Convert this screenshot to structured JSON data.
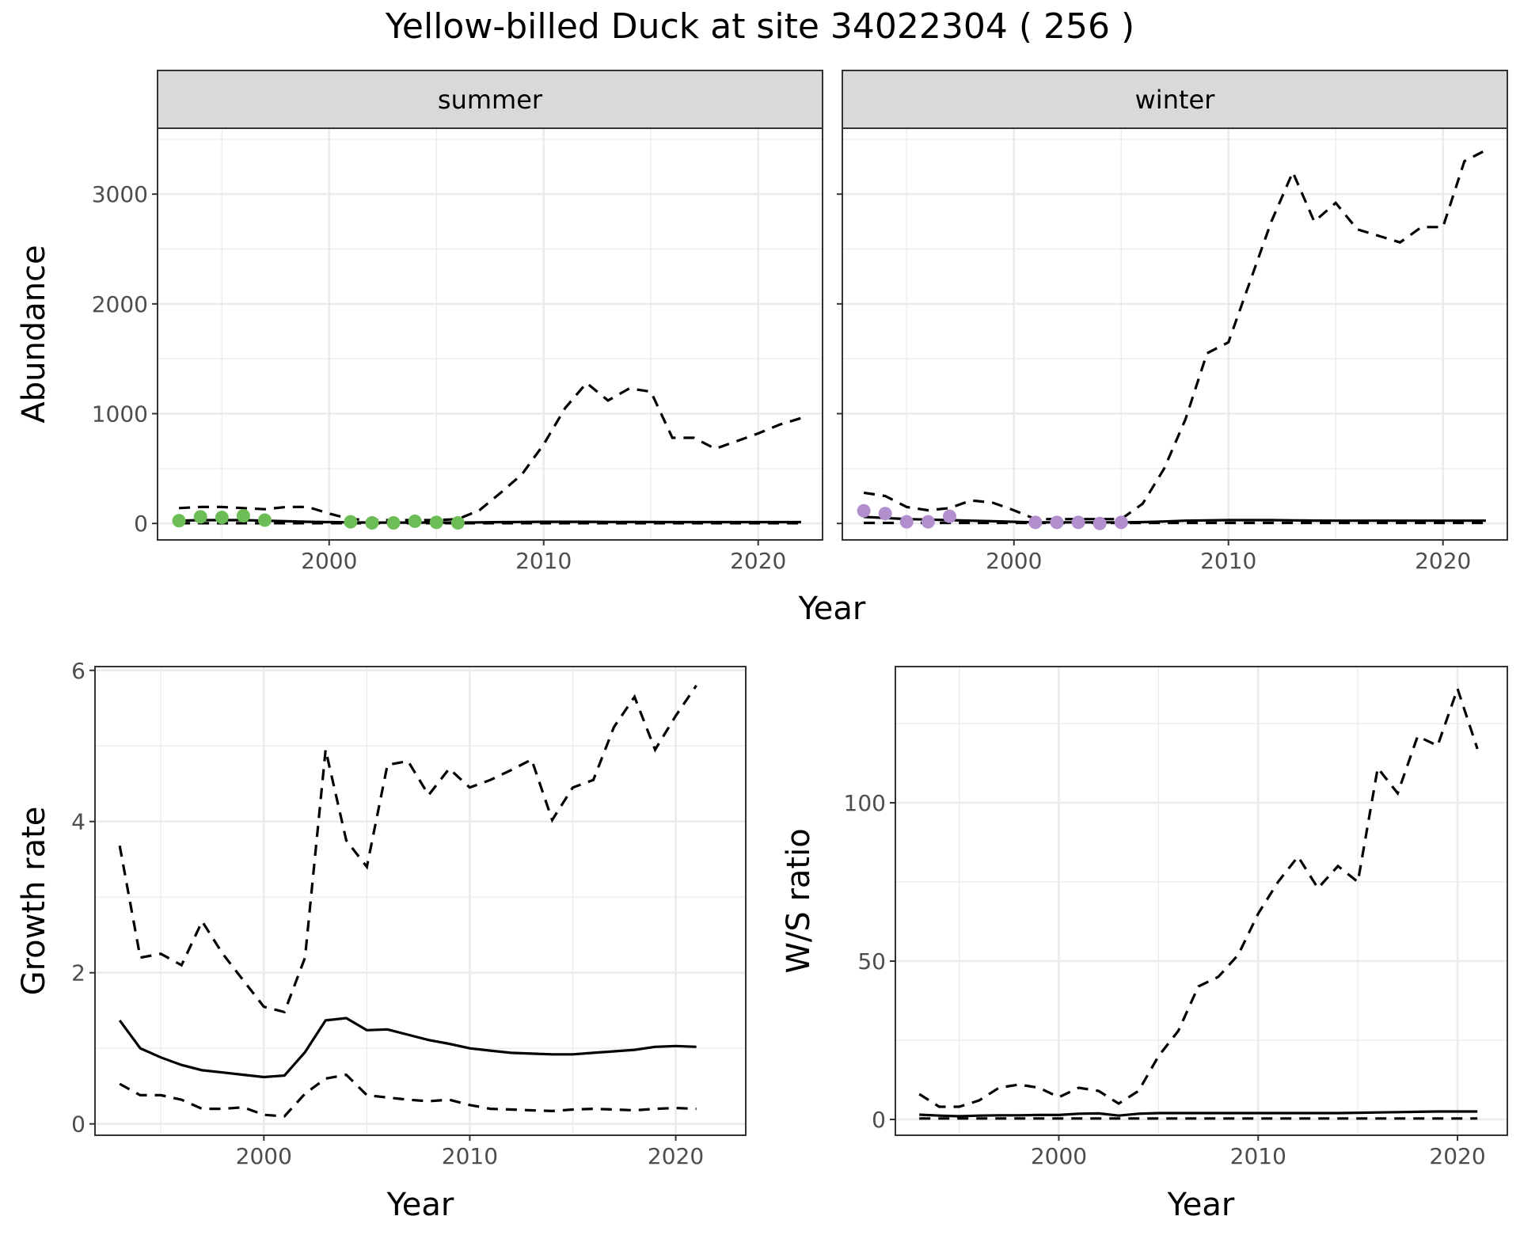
{
  "title": "Yellow-billed Duck at site 34022304 ( 256 )",
  "colors": {
    "summer_points": "#6dbd57",
    "winter_points": "#b18fcf",
    "lines": "#000000",
    "strip": "#d9d9d9",
    "grid": "#ebebeb"
  },
  "chart_data": [
    {
      "id": "abundance-summer",
      "type": "line",
      "strip_label": "summer",
      "ylabel": "Abundance",
      "xlim": [
        1992,
        2023
      ],
      "ylim": [
        -150,
        3600
      ],
      "xticks": [
        2000,
        2010,
        2020
      ],
      "yticks": [
        0,
        1000,
        2000,
        3000
      ],
      "grid": true,
      "series": [
        {
          "style": "solid",
          "x": [
            1993,
            1994,
            1995,
            1996,
            1997,
            1998,
            1999,
            2000,
            2001,
            2002,
            2003,
            2004,
            2005,
            2006,
            2007,
            2008,
            2009,
            2010,
            2011,
            2012,
            2013,
            2014,
            2015,
            2016,
            2017,
            2018,
            2019,
            2020,
            2021,
            2022
          ],
          "y": [
            25,
            30,
            30,
            30,
            25,
            20,
            15,
            12,
            10,
            8,
            8,
            8,
            8,
            8,
            10,
            12,
            14,
            15,
            15,
            15,
            14,
            14,
            13,
            12,
            12,
            12,
            12,
            12,
            12,
            12
          ]
        },
        {
          "style": "dashed",
          "x": [
            1993,
            1994,
            1995,
            1996,
            1997,
            1998,
            1999,
            2000,
            2001,
            2002,
            2003,
            2004,
            2005,
            2006,
            2007,
            2008,
            2009,
            2010,
            2011,
            2012,
            2013,
            2014,
            2015,
            2016,
            2017,
            2018,
            2019,
            2020,
            2021,
            2022
          ],
          "y": [
            140,
            150,
            150,
            140,
            130,
            150,
            150,
            90,
            40,
            30,
            30,
            30,
            30,
            40,
            120,
            280,
            450,
            720,
            1050,
            1280,
            1120,
            1230,
            1200,
            780,
            780,
            680,
            750,
            820,
            900,
            960
          ]
        },
        {
          "style": "dashed",
          "x": [
            1993,
            2022
          ],
          "y": [
            2,
            2
          ]
        }
      ],
      "points": {
        "x": [
          1993,
          1994,
          1995,
          1996,
          1997,
          2001,
          2002,
          2003,
          2004,
          2005,
          2006
        ],
        "y": [
          25,
          60,
          55,
          70,
          30,
          15,
          5,
          5,
          20,
          10,
          5
        ]
      }
    },
    {
      "id": "abundance-winter",
      "type": "line",
      "strip_label": "winter",
      "xlim": [
        1992,
        2023
      ],
      "ylim": [
        -150,
        3600
      ],
      "xticks": [
        2000,
        2010,
        2020
      ],
      "yticks": [
        0,
        1000,
        2000,
        3000
      ],
      "grid": true,
      "series": [
        {
          "style": "solid",
          "x": [
            1993,
            1994,
            1995,
            1996,
            1997,
            1998,
            1999,
            2000,
            2001,
            2002,
            2003,
            2004,
            2005,
            2006,
            2007,
            2008,
            2009,
            2010,
            2011,
            2012,
            2013,
            2014,
            2015,
            2016,
            2017,
            2018,
            2019,
            2020,
            2021,
            2022
          ],
          "y": [
            60,
            50,
            40,
            35,
            30,
            25,
            20,
            15,
            10,
            10,
            10,
            10,
            10,
            12,
            18,
            25,
            28,
            30,
            30,
            30,
            28,
            26,
            25,
            25,
            25,
            25,
            25,
            25,
            25,
            25
          ]
        },
        {
          "style": "dashed",
          "x": [
            1993,
            1994,
            1995,
            1996,
            1997,
            1998,
            1999,
            2000,
            2001,
            2002,
            2003,
            2004,
            2005,
            2006,
            2007,
            2008,
            2009,
            2010,
            2011,
            2012,
            2013,
            2014,
            2015,
            2016,
            2017,
            2018,
            2019,
            2020,
            2021,
            2022
          ],
          "y": [
            280,
            250,
            150,
            120,
            140,
            210,
            190,
            120,
            40,
            40,
            40,
            40,
            40,
            180,
            500,
            950,
            1550,
            1650,
            2200,
            2750,
            3200,
            2750,
            2920,
            2680,
            2620,
            2560,
            2700,
            2700,
            3300,
            3400
          ]
        },
        {
          "style": "dashed",
          "x": [
            1993,
            2022
          ],
          "y": [
            5,
            5
          ]
        }
      ],
      "points": {
        "x": [
          1993,
          1994,
          1995,
          1996,
          1997,
          2001,
          2002,
          2003,
          2004,
          2005
        ],
        "y": [
          115,
          90,
          15,
          15,
          65,
          10,
          10,
          10,
          0,
          10
        ]
      }
    },
    {
      "id": "growth-rate",
      "type": "line",
      "xlabel": "Year",
      "ylabel": "Growth rate",
      "xlim": [
        1991.8,
        2023.4
      ],
      "ylim": [
        -0.15,
        6.05
      ],
      "xticks": [
        2000,
        2010,
        2020
      ],
      "yticks": [
        0,
        2,
        4,
        6
      ],
      "grid": true,
      "series": [
        {
          "style": "solid",
          "x": [
            1993,
            1994,
            1995,
            1996,
            1997,
            1998,
            1999,
            2000,
            2001,
            2002,
            2003,
            2004,
            2005,
            2006,
            2007,
            2008,
            2009,
            2010,
            2011,
            2012,
            2013,
            2014,
            2015,
            2016,
            2017,
            2018,
            2019,
            2020,
            2021
          ],
          "y": [
            1.37,
            1.0,
            0.88,
            0.78,
            0.71,
            0.68,
            0.65,
            0.62,
            0.64,
            0.95,
            1.37,
            1.4,
            1.24,
            1.25,
            1.18,
            1.11,
            1.06,
            1.0,
            0.97,
            0.94,
            0.93,
            0.92,
            0.92,
            0.94,
            0.96,
            0.98,
            1.02,
            1.03,
            1.02
          ]
        },
        {
          "style": "dashed",
          "x": [
            1993,
            1994,
            1995,
            1996,
            1997,
            1998,
            1999,
            2000,
            2001,
            2002,
            2003,
            2004,
            2005,
            2006,
            2007,
            2008,
            2009,
            2010,
            2011,
            2012,
            2013,
            2014,
            2015,
            2016,
            2017,
            2018,
            2019,
            2020,
            2021
          ],
          "y": [
            3.68,
            2.2,
            2.25,
            2.1,
            2.68,
            2.25,
            1.9,
            1.55,
            1.48,
            2.2,
            4.95,
            3.75,
            3.4,
            4.75,
            4.8,
            4.35,
            4.7,
            4.45,
            4.55,
            4.68,
            4.82,
            4.02,
            4.45,
            4.55,
            5.25,
            5.65,
            4.95,
            5.4,
            5.8
          ]
        },
        {
          "style": "dashed",
          "x": [
            1993,
            1994,
            1995,
            1996,
            1997,
            1998,
            1999,
            2000,
            2001,
            2002,
            2003,
            2004,
            2005,
            2006,
            2007,
            2008,
            2009,
            2010,
            2011,
            2012,
            2013,
            2014,
            2015,
            2016,
            2017,
            2018,
            2019,
            2020,
            2021
          ],
          "y": [
            0.53,
            0.38,
            0.38,
            0.32,
            0.2,
            0.2,
            0.22,
            0.12,
            0.1,
            0.4,
            0.6,
            0.65,
            0.38,
            0.35,
            0.32,
            0.3,
            0.32,
            0.25,
            0.2,
            0.19,
            0.18,
            0.17,
            0.19,
            0.2,
            0.19,
            0.18,
            0.2,
            0.21,
            0.2
          ]
        }
      ]
    },
    {
      "id": "ws-ratio",
      "type": "line",
      "xlabel": "Year",
      "ylabel": "W/S ratio",
      "xlim": [
        1991.8,
        2022.5
      ],
      "ylim": [
        -5,
        143
      ],
      "xticks": [
        2000,
        2010,
        2020
      ],
      "yticks": [
        0,
        50,
        100
      ],
      "grid": true,
      "series": [
        {
          "style": "solid",
          "x": [
            1993,
            1994,
            1995,
            1996,
            1997,
            1998,
            1999,
            2000,
            2001,
            2002,
            2003,
            2004,
            2005,
            2006,
            2007,
            2008,
            2009,
            2010,
            2011,
            2012,
            2013,
            2014,
            2015,
            2016,
            2017,
            2018,
            2019,
            2020,
            2021
          ],
          "y": [
            1.5,
            1.2,
            1.0,
            1.2,
            1.3,
            1.3,
            1.4,
            1.4,
            1.8,
            1.9,
            1.2,
            1.8,
            2.0,
            2.0,
            2.0,
            2.0,
            2.0,
            2.0,
            2.0,
            2.0,
            2.0,
            2.0,
            2.1,
            2.2,
            2.3,
            2.4,
            2.5,
            2.5,
            2.5
          ]
        },
        {
          "style": "dashed",
          "x": [
            1993,
            1994,
            1995,
            1996,
            1997,
            1998,
            1999,
            2000,
            2001,
            2002,
            2003,
            2004,
            2005,
            2006,
            2007,
            2008,
            2009,
            2010,
            2011,
            2012,
            2013,
            2014,
            2015,
            2016,
            2017,
            2018,
            2019,
            2020,
            2021
          ],
          "y": [
            8,
            4,
            4,
            6,
            10,
            11,
            10,
            7,
            10,
            9,
            5,
            9,
            20,
            28,
            42,
            45,
            52,
            65,
            75,
            83,
            73,
            80,
            75,
            111,
            103,
            121,
            118,
            136,
            117
          ]
        },
        {
          "style": "dashed",
          "x": [
            1993,
            2021
          ],
          "y": [
            0.3,
            0.3
          ]
        }
      ]
    }
  ],
  "shared_xlabel": "Year"
}
